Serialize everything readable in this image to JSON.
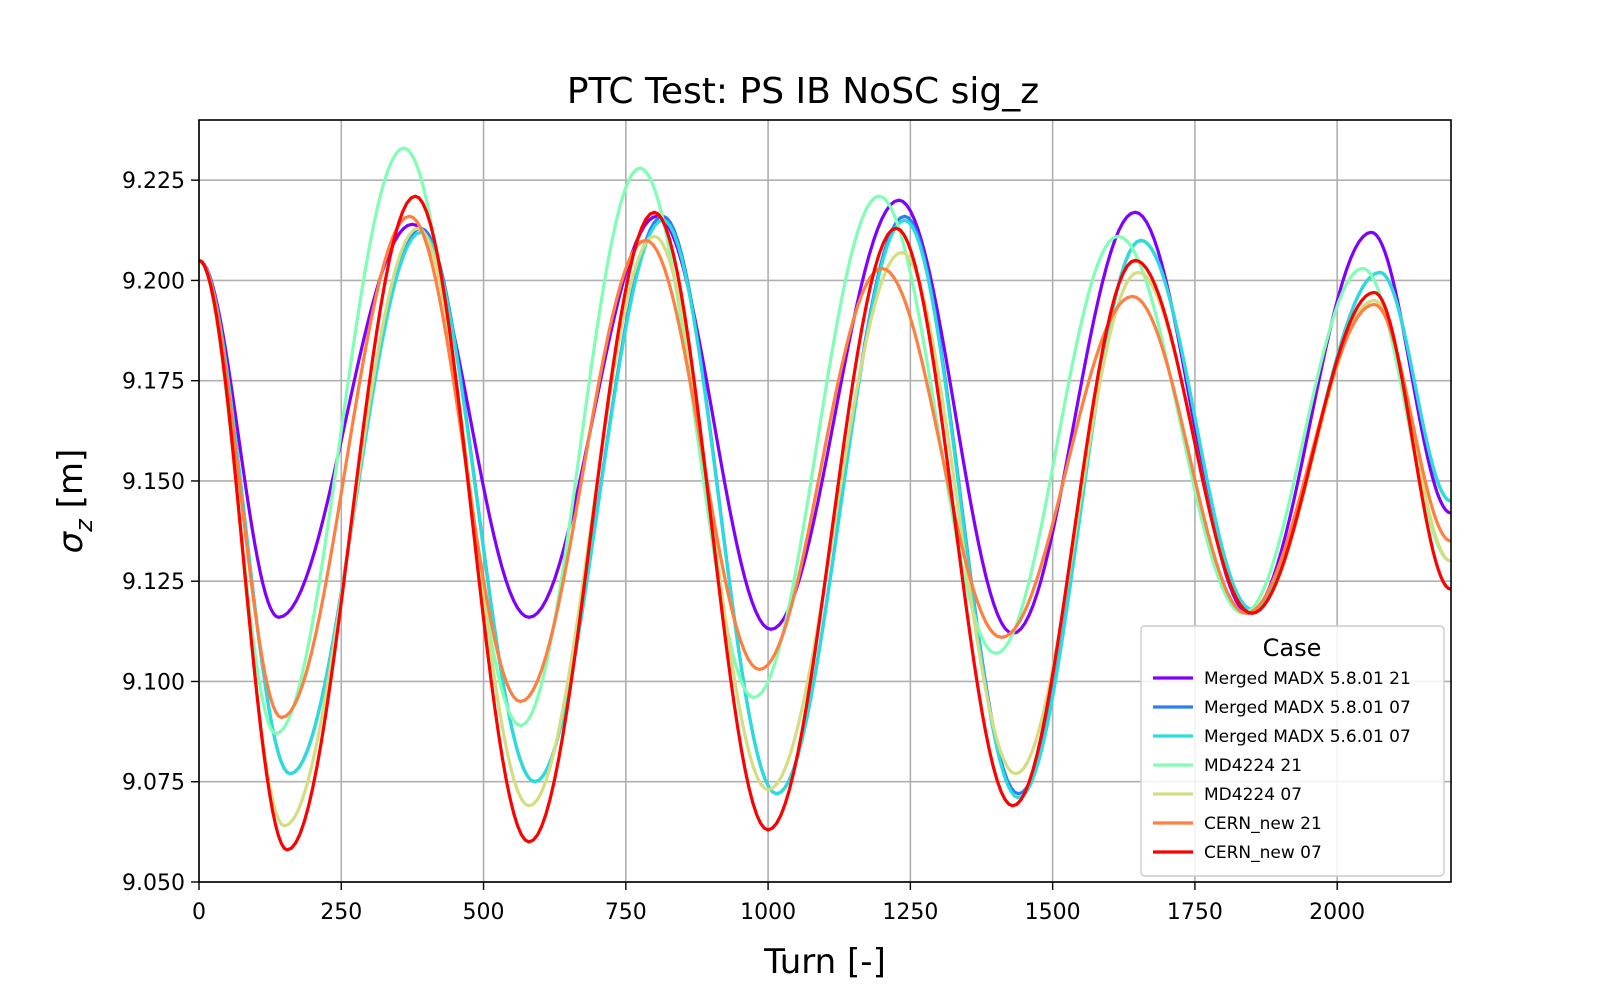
{
  "chart_data": {
    "type": "line",
    "title": "PTC Test: PS IB NoSC sig_z",
    "xlabel": "Turn [-]",
    "ylabel_main": "σ",
    "ylabel_sub": "z",
    "ylabel_unit": " [m]",
    "xlim": [
      0,
      2200
    ],
    "ylim": [
      9.05,
      9.24
    ],
    "xticks": [
      0,
      250,
      500,
      750,
      1000,
      1250,
      1500,
      1750,
      2000
    ],
    "xtick_labels": [
      "0",
      "250",
      "500",
      "750",
      "1000",
      "1250",
      "1500",
      "1750",
      "2000"
    ],
    "yticks": [
      9.05,
      9.075,
      9.1,
      9.125,
      9.15,
      9.175,
      9.2,
      9.225
    ],
    "ytick_labels": [
      "9.050",
      "9.075",
      "9.100",
      "9.125",
      "9.150",
      "9.175",
      "9.200",
      "9.225"
    ],
    "grid": true,
    "legend_title": "Case",
    "legend_position": "lower-right",
    "series": [
      {
        "name": "Merged MADX 5.8.01 21",
        "color": "#8000ff",
        "x": [
          0,
          140,
          375,
          580,
          805,
          1005,
          1230,
          1430,
          1645,
          1845,
          2060,
          2200
        ],
        "y": [
          9.205,
          9.116,
          9.214,
          9.116,
          9.216,
          9.113,
          9.22,
          9.112,
          9.217,
          9.117,
          9.212,
          9.142
        ]
      },
      {
        "name": "Merged MADX 5.8.01 07",
        "color": "#2c7ef7",
        "x": [
          0,
          160,
          390,
          590,
          815,
          1015,
          1240,
          1440,
          1655,
          1850,
          2075,
          2200
        ],
        "y": [
          9.205,
          9.077,
          9.213,
          9.075,
          9.216,
          9.072,
          9.216,
          9.072,
          9.21,
          9.118,
          9.202,
          9.145
        ]
      },
      {
        "name": "Merged MADX 5.6.01 07",
        "color": "#2adddd",
        "x": [
          0,
          160,
          390,
          590,
          815,
          1015,
          1240,
          1440,
          1655,
          1850,
          2075,
          2200
        ],
        "y": [
          9.205,
          9.077,
          9.212,
          9.075,
          9.215,
          9.072,
          9.215,
          9.071,
          9.21,
          9.118,
          9.202,
          9.145
        ]
      },
      {
        "name": "MD4224 21",
        "color": "#80ffb4",
        "x": [
          0,
          135,
          360,
          565,
          775,
          975,
          1195,
          1400,
          1615,
          1835,
          2045,
          2200
        ],
        "y": [
          9.205,
          9.087,
          9.233,
          9.089,
          9.228,
          9.096,
          9.221,
          9.107,
          9.211,
          9.117,
          9.203,
          9.13
        ]
      },
      {
        "name": "MD4224 07",
        "color": "#d4dd80",
        "x": [
          0,
          150,
          385,
          580,
          800,
          1000,
          1235,
          1435,
          1650,
          1850,
          2065,
          2200
        ],
        "y": [
          9.205,
          9.064,
          9.213,
          9.069,
          9.211,
          9.073,
          9.207,
          9.077,
          9.202,
          9.117,
          9.195,
          9.13
        ]
      },
      {
        "name": "CERN_new 21",
        "color": "#ff7f40",
        "x": [
          0,
          145,
          370,
          565,
          785,
          985,
          1200,
          1410,
          1640,
          1840,
          2065,
          2200
        ],
        "y": [
          9.205,
          9.091,
          9.216,
          9.095,
          9.21,
          9.103,
          9.203,
          9.111,
          9.196,
          9.117,
          9.194,
          9.135
        ]
      },
      {
        "name": "CERN_new 07",
        "color": "#ff0000",
        "x": [
          0,
          155,
          380,
          580,
          800,
          1000,
          1225,
          1430,
          1645,
          1850,
          2065,
          2200
        ],
        "y": [
          9.205,
          9.058,
          9.221,
          9.06,
          9.217,
          9.063,
          9.213,
          9.069,
          9.205,
          9.117,
          9.197,
          9.123
        ]
      }
    ]
  }
}
